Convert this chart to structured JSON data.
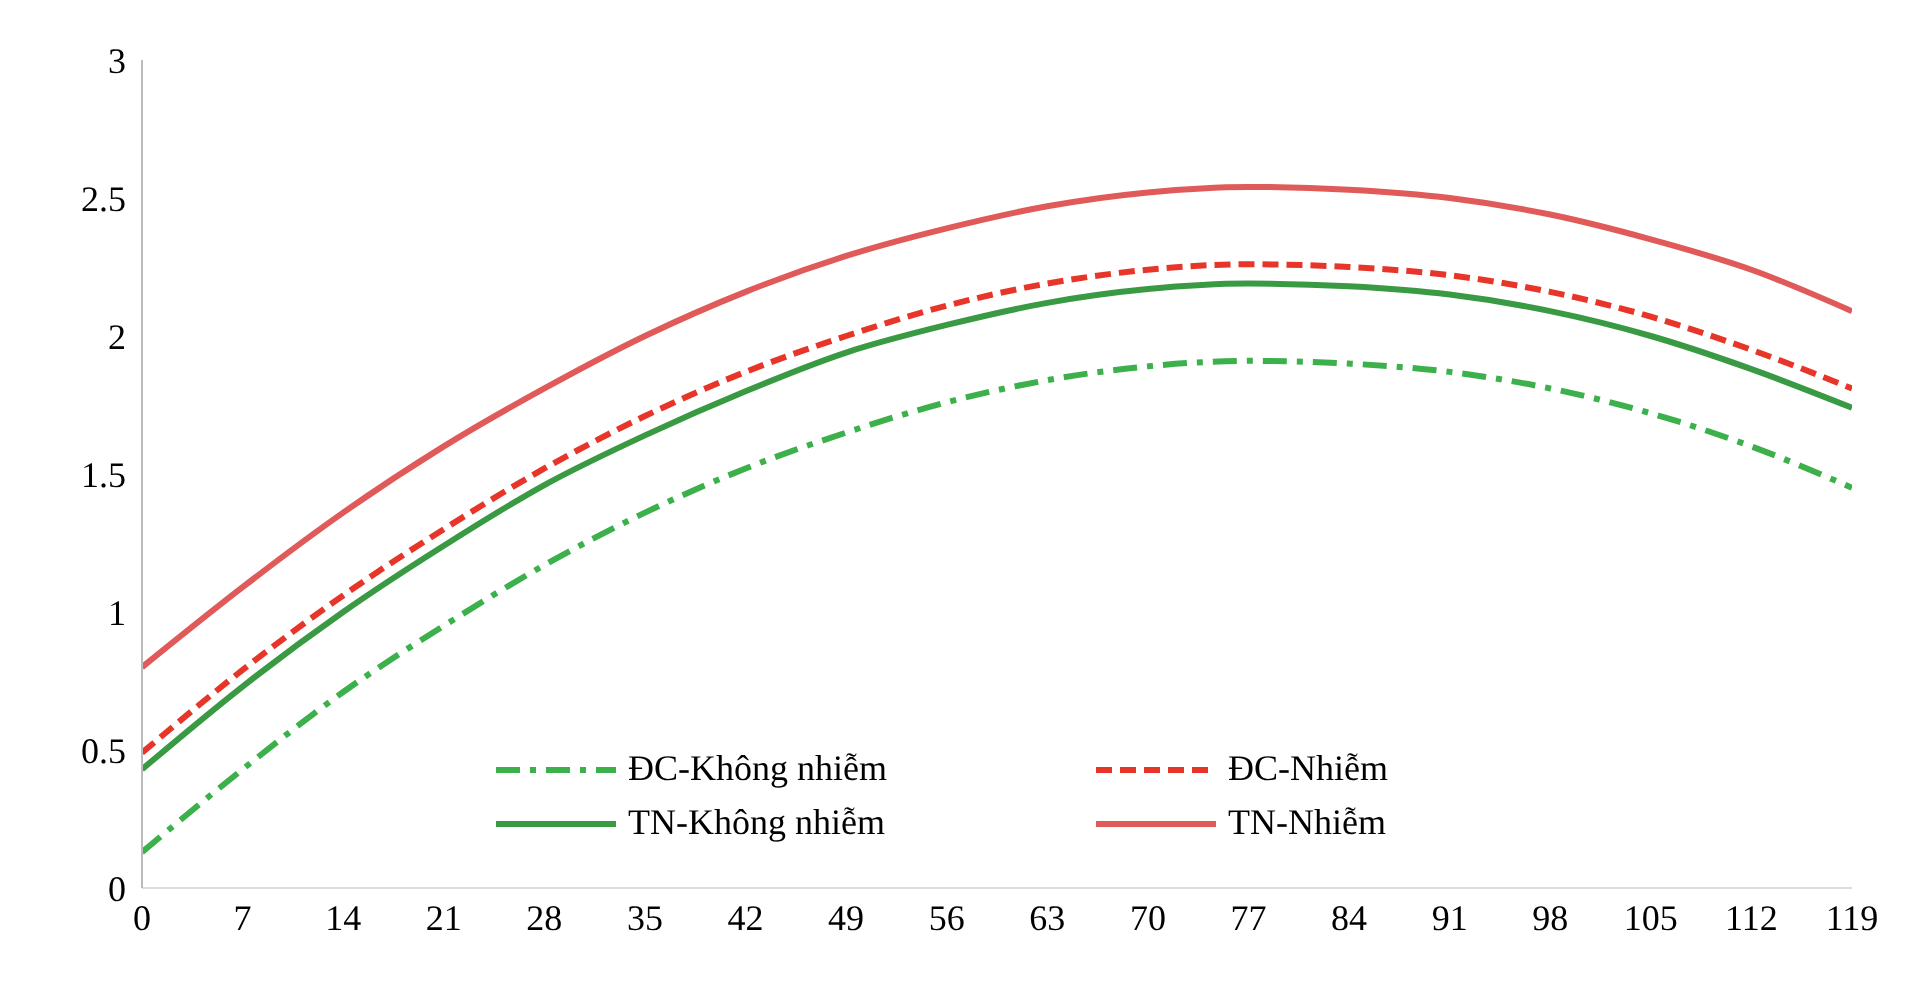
{
  "chart_data": {
    "type": "line",
    "x": [
      0,
      7,
      14,
      21,
      28,
      35,
      42,
      49,
      56,
      63,
      70,
      77,
      84,
      91,
      98,
      105,
      112,
      119
    ],
    "xlim": [
      0,
      119
    ],
    "xticks": [
      0,
      7,
      14,
      21,
      28,
      35,
      42,
      49,
      56,
      63,
      70,
      77,
      84,
      91,
      98,
      105,
      112,
      119
    ],
    "ylim": [
      0,
      3
    ],
    "yticks": [
      0,
      0.5,
      1,
      1.5,
      2,
      2.5,
      3
    ],
    "grid": false,
    "legend": "bottom",
    "marker": "none",
    "series": [
      {
        "name": "ĐC-Không nhiễm",
        "color": "#3cb04a",
        "line_style": "dashdot",
        "values": [
          0.13,
          0.43,
          0.71,
          0.95,
          1.17,
          1.36,
          1.52,
          1.65,
          1.76,
          1.84,
          1.89,
          1.91,
          1.9,
          1.87,
          1.81,
          1.72,
          1.6,
          1.45
        ]
      },
      {
        "name": "ĐC-Nhiễm",
        "color": "#e8352a",
        "line_style": "dashed",
        "values": [
          0.49,
          0.79,
          1.06,
          1.3,
          1.52,
          1.71,
          1.87,
          2.0,
          2.11,
          2.19,
          2.24,
          2.26,
          2.25,
          2.22,
          2.16,
          2.07,
          1.95,
          1.81
        ]
      },
      {
        "name": "TN-Không nhiễm",
        "color": "#3a9a44",
        "line_style": "solid",
        "values": [
          0.43,
          0.73,
          1.0,
          1.24,
          1.46,
          1.64,
          1.8,
          1.94,
          2.04,
          2.12,
          2.17,
          2.19,
          2.18,
          2.15,
          2.09,
          2.0,
          1.88,
          1.74
        ]
      },
      {
        "name": "TN-Nhiễm",
        "color": "#e05a5a",
        "line_style": "solid",
        "values": [
          0.8,
          1.09,
          1.36,
          1.6,
          1.81,
          2.0,
          2.16,
          2.29,
          2.39,
          2.47,
          2.52,
          2.54,
          2.53,
          2.5,
          2.44,
          2.35,
          2.24,
          2.09
        ]
      }
    ]
  }
}
